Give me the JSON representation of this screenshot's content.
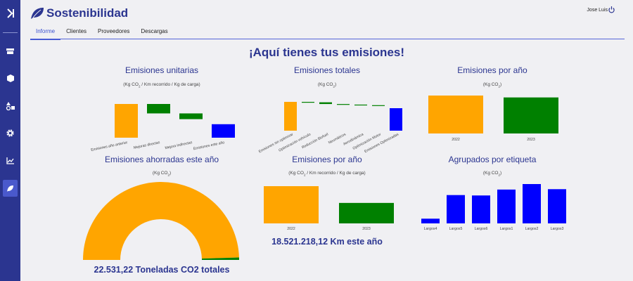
{
  "sidebar": {
    "items": [
      {
        "name": "expand-icon",
        "active": false
      },
      {
        "name": "store-icon",
        "active": false
      },
      {
        "name": "box-icon",
        "active": false
      },
      {
        "name": "shapes-icon",
        "active": false
      },
      {
        "name": "gear-icon",
        "active": false
      },
      {
        "name": "chart-line-icon",
        "active": false
      },
      {
        "name": "leaf-icon",
        "active": true
      }
    ]
  },
  "header": {
    "app_title": "Sostenibilidad",
    "user_name": "Jose Luis",
    "logout_icon": "power-icon"
  },
  "tabs": [
    {
      "label": "Informe",
      "active": true
    },
    {
      "label": "Clientes"
    },
    {
      "label": "Proveedores"
    },
    {
      "label": "Descargas"
    }
  ],
  "page_title": "¡Aquí tienes tus emisiones!",
  "colors": {
    "orange": "#ffa500",
    "green": "#008000",
    "blue": "#0000ff",
    "accent": "#2b3590"
  },
  "chart_data": [
    {
      "id": "unit",
      "type": "bar",
      "title": "Emisiones unitarias",
      "unit_pre": "(Kg CO",
      "unit_sub": "2",
      "unit_post": " / Km recorrido / Kg de carga)",
      "categories": [
        "Emisiones año anterior",
        "Mejoras directas",
        "Mejora indirectas",
        "Emisiones este año"
      ],
      "waterfall": [
        [
          0,
          1
        ],
        [
          0.72,
          1
        ],
        [
          0.55,
          0.72
        ],
        [
          0,
          0.4
        ]
      ],
      "colors": [
        "#ffa500",
        "#008000",
        "#008000",
        "#0000ff"
      ]
    },
    {
      "id": "total",
      "type": "bar",
      "title": "Emisiones totales",
      "unit_pre": "(Kg CO",
      "unit_sub": "2",
      "unit_post": ")",
      "categories": [
        "Emisiones sin optimizar",
        "Optimización vehículo",
        "Reducción Biofuel",
        "Neumáticos",
        "Aerodinámica",
        "Optimización Motor",
        "Emisiones Optimizadas"
      ],
      "waterfall": [
        [
          0,
          1
        ],
        [
          0.985,
          1
        ],
        [
          0.925,
          0.985
        ],
        [
          0.905,
          0.925
        ],
        [
          0.885,
          0.905
        ],
        [
          0.86,
          0.885
        ],
        [
          0,
          0.78
        ]
      ],
      "colors": [
        "#ffa500",
        "#008000",
        "#008000",
        "#008000",
        "#008000",
        "#008000",
        "#0000ff"
      ]
    },
    {
      "id": "year",
      "type": "bar",
      "title": "Emisiones por año",
      "unit_pre": "(Kg CO",
      "unit_sub": "2",
      "unit_post": ")",
      "categories": [
        "2022",
        "2023"
      ],
      "values": [
        1,
        0.95
      ],
      "colors": [
        "#ffa500",
        "#008000"
      ]
    },
    {
      "id": "saved",
      "type": "pie",
      "title": "Emisiones ahorradas este año",
      "unit_pre": "(Kg CO",
      "unit_sub": "2",
      "unit_post": ")",
      "values": [
        0.99,
        0.01
      ],
      "colors": [
        "#ffa500",
        "#008000"
      ],
      "total_text": "22.531,22 Toneladas CO2 totales"
    },
    {
      "id": "yearunit",
      "type": "bar",
      "title": "Emisiones por año",
      "unit_pre": "(Kg CO",
      "unit_sub": "2",
      "unit_post": " / Km recorrido / Kg de carga)",
      "categories": [
        "2022",
        "2023"
      ],
      "values": [
        1,
        0.55
      ],
      "colors": [
        "#ffa500",
        "#008000"
      ],
      "km_text": "18.521.218,12 Km este año"
    },
    {
      "id": "tags",
      "type": "bar",
      "title": "Agrupados por etiqueta",
      "unit_pre": "(Kg CO",
      "unit_sub": "2",
      "unit_post": ")",
      "categories": [
        "Largos4",
        "Largos5",
        "Largos6",
        "Largos1",
        "Largos2",
        "Largos3"
      ],
      "values": [
        0.12,
        0.72,
        0.71,
        0.86,
        1,
        0.87
      ],
      "colors": [
        "#0000ff",
        "#0000ff",
        "#0000ff",
        "#0000ff",
        "#0000ff",
        "#0000ff"
      ]
    }
  ]
}
